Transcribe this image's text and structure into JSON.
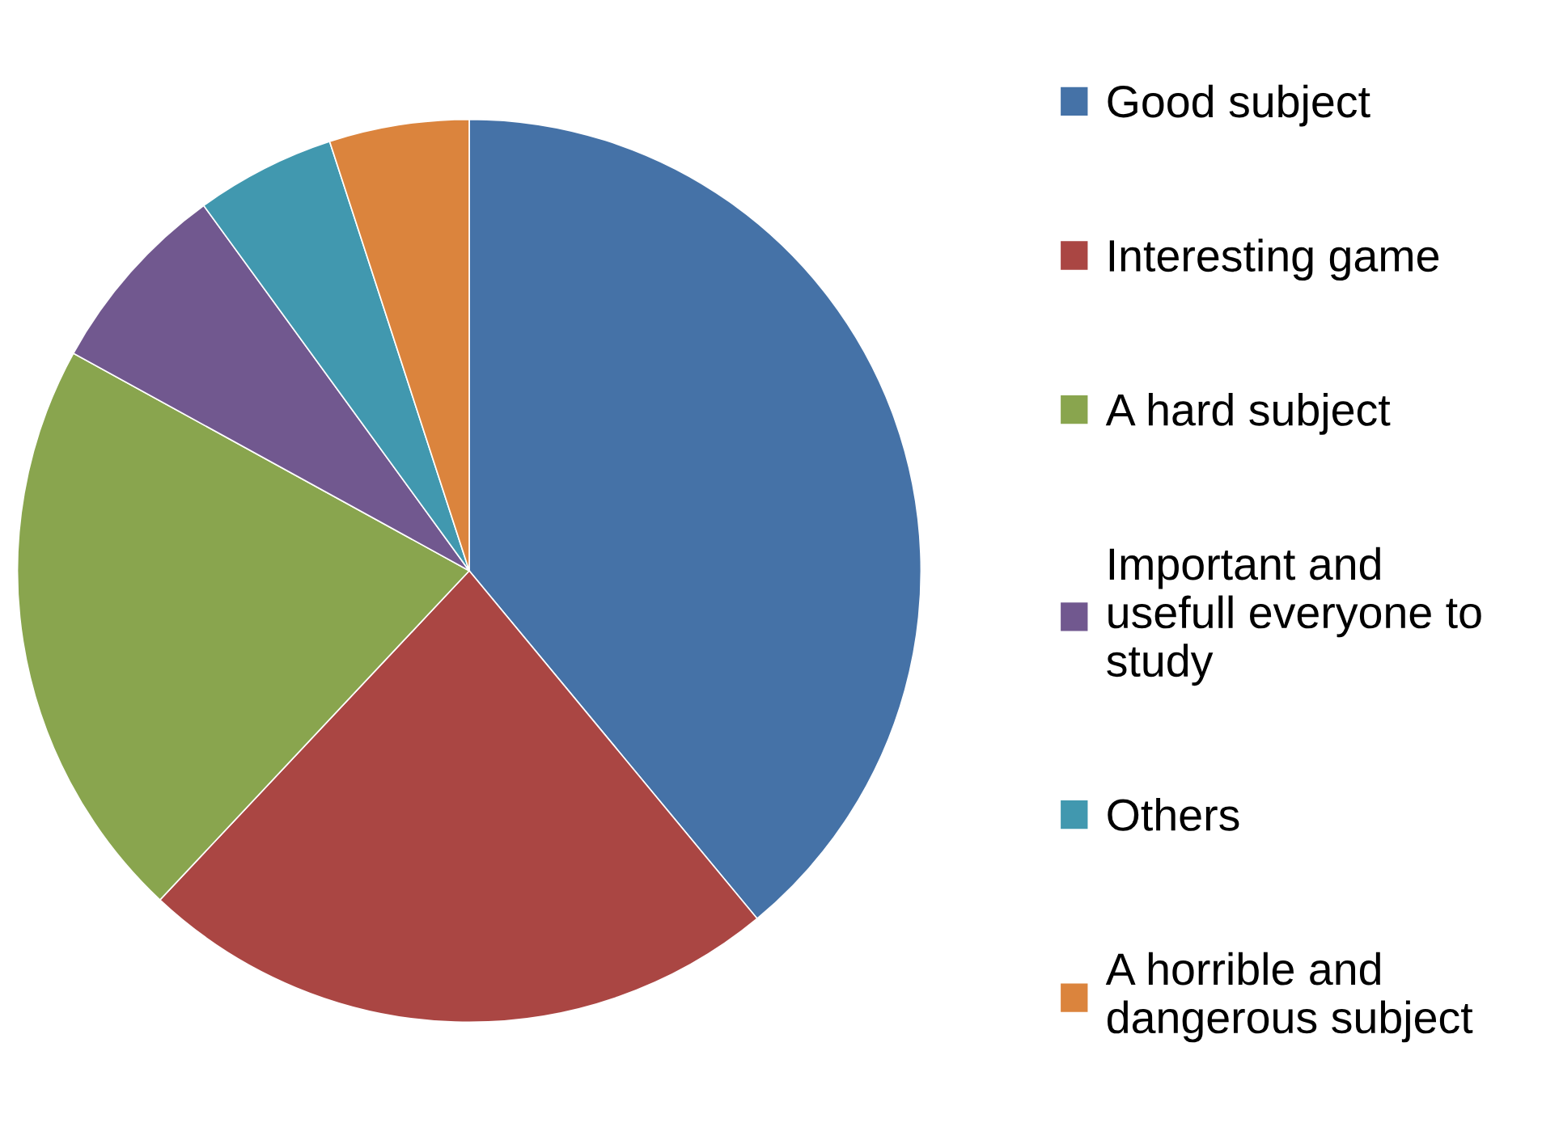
{
  "chart_data": {
    "type": "pie",
    "categories": [
      "Good subject",
      "Interesting game",
      "A hard subject",
      "Important and\nusefull everyone to\nstudy",
      "Others",
      "A horrible and\ndangerous subject"
    ],
    "values": [
      39,
      23,
      21,
      7,
      5,
      5
    ],
    "colors": [
      "#4572a7",
      "#aa4643",
      "#89a54e",
      "#71588f",
      "#4198af",
      "#db843d"
    ],
    "legend": "right"
  }
}
